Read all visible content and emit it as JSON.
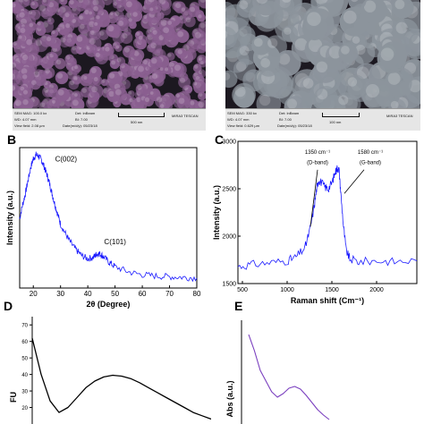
{
  "sem": [
    {
      "id": "sem-left",
      "tint": "#8a5f90",
      "mag": "SEM MAG: 100.0 kx",
      "det": "Det: InBeam",
      "wd": "WD: 4.07 mm",
      "bi": "BI: 7.00",
      "view_field": "View field: 2.08 µm",
      "date": "Date(m/d/y): 05/23/18",
      "scale": "500 nm",
      "brand": "MIRA3 TESCAN"
    },
    {
      "id": "sem-right",
      "tint": "#8c949c",
      "mag": "SEM MAG: 330 kx",
      "det": "Det: InBeam",
      "wd": "WD: 4.07 mm",
      "bi": "BI: 7.00",
      "view_field": "View field: 0.629 µm",
      "date": "Date(m/d/y): 05/23/18",
      "scale": "100 nm",
      "brand": "MIRA3 TESCAN"
    }
  ],
  "panel_labels": {
    "b": "B",
    "c": "C",
    "d": "D",
    "e": "E"
  },
  "chart_data": [
    {
      "id": "xrd",
      "type": "line",
      "xlabel": "2θ (Degree)",
      "ylabel": "Intensity (a.u.)",
      "xlim": [
        15,
        80
      ],
      "xticks": [
        20,
        30,
        40,
        50,
        60,
        70,
        80
      ],
      "color": "#1a1aff",
      "x": [
        15,
        16,
        17,
        18,
        19,
        20,
        21,
        22,
        23,
        24,
        25,
        26,
        27,
        28,
        29,
        30,
        32,
        34,
        36,
        38,
        40,
        42,
        43,
        44,
        45,
        46,
        48,
        50,
        55,
        60,
        65,
        70,
        75,
        80
      ],
      "y": [
        0.52,
        0.62,
        0.7,
        0.8,
        0.9,
        0.97,
        1.0,
        0.99,
        0.96,
        0.91,
        0.85,
        0.78,
        0.7,
        0.62,
        0.55,
        0.48,
        0.4,
        0.33,
        0.28,
        0.24,
        0.22,
        0.23,
        0.25,
        0.26,
        0.25,
        0.23,
        0.19,
        0.16,
        0.12,
        0.1,
        0.09,
        0.085,
        0.08,
        0.075
      ],
      "annotations": [
        {
          "text": "C(002)",
          "x": 28,
          "y": 0.95
        },
        {
          "text": "C(101)",
          "x": 46,
          "y": 0.33
        }
      ]
    },
    {
      "id": "raman",
      "type": "line",
      "xlabel": "Raman shift (Cm⁻¹)",
      "ylabel": "Intensity (a.u.)",
      "xlim": [
        450,
        2450
      ],
      "ylim": [
        1500,
        3000
      ],
      "xticks": [
        500,
        1000,
        1500,
        2000
      ],
      "yticks": [
        1500,
        2000,
        2500,
        3000
      ],
      "ytick_labels": [
        "1500",
        "2000",
        "2500",
        "3000"
      ],
      "extra_yticks": [
        1700,
        2300,
        2400,
        2500,
        2600,
        2700,
        2800,
        2900,
        3000
      ],
      "color": "#1a1aff",
      "x": [
        450,
        600,
        800,
        1000,
        1100,
        1200,
        1250,
        1300,
        1330,
        1350,
        1380,
        1420,
        1460,
        1500,
        1540,
        1560,
        1580,
        1600,
        1630,
        1660,
        1700,
        1800,
        2000,
        2200,
        2450
      ],
      "y": [
        1680,
        1700,
        1720,
        1740,
        1780,
        1880,
        2050,
        2300,
        2500,
        2590,
        2570,
        2520,
        2500,
        2560,
        2680,
        2720,
        2700,
        2450,
        2100,
        1850,
        1760,
        1730,
        1740,
        1730,
        1740
      ],
      "annotations": [
        {
          "text": "1350 cm⁻¹",
          "x": 1340,
          "y": 2870
        },
        {
          "text": "(D-band)",
          "x": 1340,
          "y": 2760
        },
        {
          "text": "1580 cm⁻¹",
          "x": 1930,
          "y": 2870
        },
        {
          "text": "(G-band)",
          "x": 1930,
          "y": 2760
        }
      ]
    },
    {
      "id": "fluorescence",
      "type": "line",
      "ylabel": "FU",
      "ylim": [
        10,
        75
      ],
      "yticks": [
        20,
        30,
        40,
        50,
        60,
        70
      ],
      "ytick_labels": [
        "20",
        "30",
        "40",
        "50",
        "60",
        "70"
      ],
      "color": "#000000",
      "x": [
        0,
        1,
        2,
        3,
        4,
        5,
        6,
        7,
        8,
        9,
        10,
        11,
        12,
        13,
        14,
        15,
        16,
        17,
        18,
        19,
        20
      ],
      "y": [
        62,
        40,
        24,
        17,
        20,
        26,
        32,
        36,
        38.5,
        39.5,
        39,
        37.5,
        35,
        32,
        29,
        26,
        23,
        20,
        17,
        15,
        13
      ]
    },
    {
      "id": "absorbance",
      "type": "line",
      "ylabel": "Abs (a.u.)",
      "color": "#7a3fbf",
      "x": [
        0,
        1,
        2,
        3,
        4,
        5,
        6,
        7,
        8,
        9,
        10,
        11,
        12,
        13,
        14
      ],
      "y": [
        1.0,
        0.82,
        0.6,
        0.48,
        0.36,
        0.3,
        0.34,
        0.4,
        0.42,
        0.39,
        0.32,
        0.24,
        0.16,
        0.1,
        0.05
      ]
    }
  ]
}
